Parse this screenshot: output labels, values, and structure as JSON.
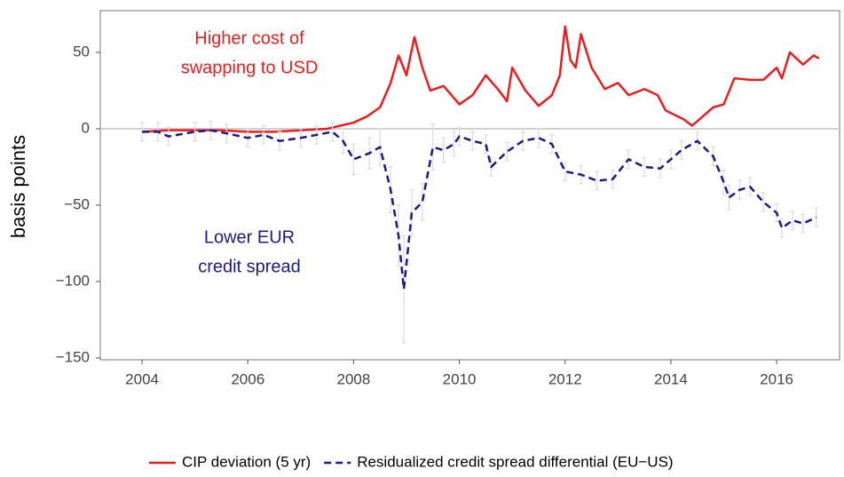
{
  "chart_data": {
    "type": "line",
    "ylabel": "basis points",
    "xlim": [
      2003.21,
      2017.19
    ],
    "ylim": [
      -151.2,
      77.3
    ],
    "xticks": [
      2004,
      2006,
      2008,
      2010,
      2012,
      2014,
      2016
    ],
    "yticks": [
      {
        "value": -150,
        "label": "−150"
      },
      {
        "value": -100,
        "label": "−100"
      },
      {
        "value": -50,
        "label": "−50"
      },
      0,
      50
    ],
    "grid": false,
    "legend": "bottom",
    "annotations": [
      {
        "lines": [
          "Higher cost of",
          "swapping to USD"
        ],
        "color": "#ee1c1c"
      },
      {
        "lines": [
          "Lower EUR",
          "credit spread"
        ],
        "color": "#1a1a8c"
      }
    ],
    "series": [
      {
        "name": "CIP deviation (5 yr)",
        "color": "#ee1c1c",
        "dash": false,
        "x": [
          2004.0,
          2004.5,
          2005,
          2005.5,
          2006,
          2006.5,
          2007,
          2007.5,
          2007.75,
          2008,
          2008.25,
          2008.5,
          2008.7,
          2008.85,
          2009.0,
          2009.15,
          2009.3,
          2009.45,
          2009.7,
          2010,
          2010.25,
          2010.5,
          2010.75,
          2010.9,
          2011.0,
          2011.25,
          2011.5,
          2011.75,
          2011.9,
          2012.0,
          2012.1,
          2012.2,
          2012.3,
          2012.5,
          2012.75,
          2013.0,
          2013.2,
          2013.5,
          2013.75,
          2013.9,
          2014.25,
          2014.4,
          2014.6,
          2014.8,
          2015.0,
          2015.2,
          2015.5,
          2015.75,
          2016.0,
          2016.1,
          2016.25,
          2016.5,
          2016.7,
          2016.8
        ],
        "values": [
          -2,
          -1,
          -1,
          -1,
          -2,
          -2,
          -1,
          0,
          2,
          4,
          8,
          14,
          30,
          48,
          35,
          60,
          40,
          25,
          28,
          16,
          22,
          35,
          25,
          18,
          40,
          25,
          15,
          22,
          35,
          67,
          45,
          40,
          62,
          40,
          26,
          30,
          22,
          26,
          22,
          12,
          6,
          2,
          8,
          14,
          16,
          33,
          32,
          32,
          40,
          33,
          50,
          42,
          48,
          46
        ]
      },
      {
        "name": "Residualized credit spread differential (EU−US)",
        "color": "#1a1a8c",
        "dash": true,
        "errorcolor": "#dddddd",
        "x": [
          2004.0,
          2004.3,
          2004.5,
          2005,
          2005.3,
          2005.6,
          2006,
          2006.3,
          2006.6,
          2007,
          2007.3,
          2007.6,
          2007.8,
          2008.0,
          2008.3,
          2008.5,
          2008.7,
          2008.85,
          2008.95,
          2009.1,
          2009.3,
          2009.5,
          2009.7,
          2009.9,
          2010.0,
          2010.25,
          2010.5,
          2010.6,
          2010.9,
          2011.2,
          2011.5,
          2011.75,
          2012.0,
          2012.3,
          2012.6,
          2012.9,
          2013.2,
          2013.5,
          2013.8,
          2014.0,
          2014.2,
          2014.5,
          2014.8,
          2015.0,
          2015.1,
          2015.3,
          2015.5,
          2015.75,
          2016.0,
          2016.1,
          2016.3,
          2016.5,
          2016.75
        ],
        "values": [
          -2,
          -2,
          -5,
          -2,
          -1,
          -3,
          -6,
          -4,
          -8,
          -6,
          -4,
          -2,
          -8,
          -20,
          -16,
          -12,
          -40,
          -70,
          -105,
          -55,
          -48,
          -12,
          -14,
          -10,
          -5,
          -8,
          -10,
          -25,
          -15,
          -8,
          -6,
          -10,
          -28,
          -30,
          -34,
          -33,
          -20,
          -25,
          -26,
          -20,
          -14,
          -8,
          -18,
          -35,
          -45,
          -40,
          -38,
          -48,
          -55,
          -65,
          -60,
          -62,
          -58
        ],
        "errors": [
          6,
          6,
          6,
          6,
          6,
          6,
          6,
          6,
          6,
          6,
          6,
          6,
          8,
          10,
          10,
          12,
          15,
          20,
          35,
          15,
          12,
          15,
          8,
          8,
          6,
          6,
          6,
          6,
          6,
          6,
          6,
          6,
          6,
          6,
          6,
          6,
          6,
          6,
          6,
          6,
          6,
          6,
          6,
          8,
          8,
          6,
          6,
          6,
          6,
          6,
          6,
          6,
          6
        ]
      }
    ]
  }
}
